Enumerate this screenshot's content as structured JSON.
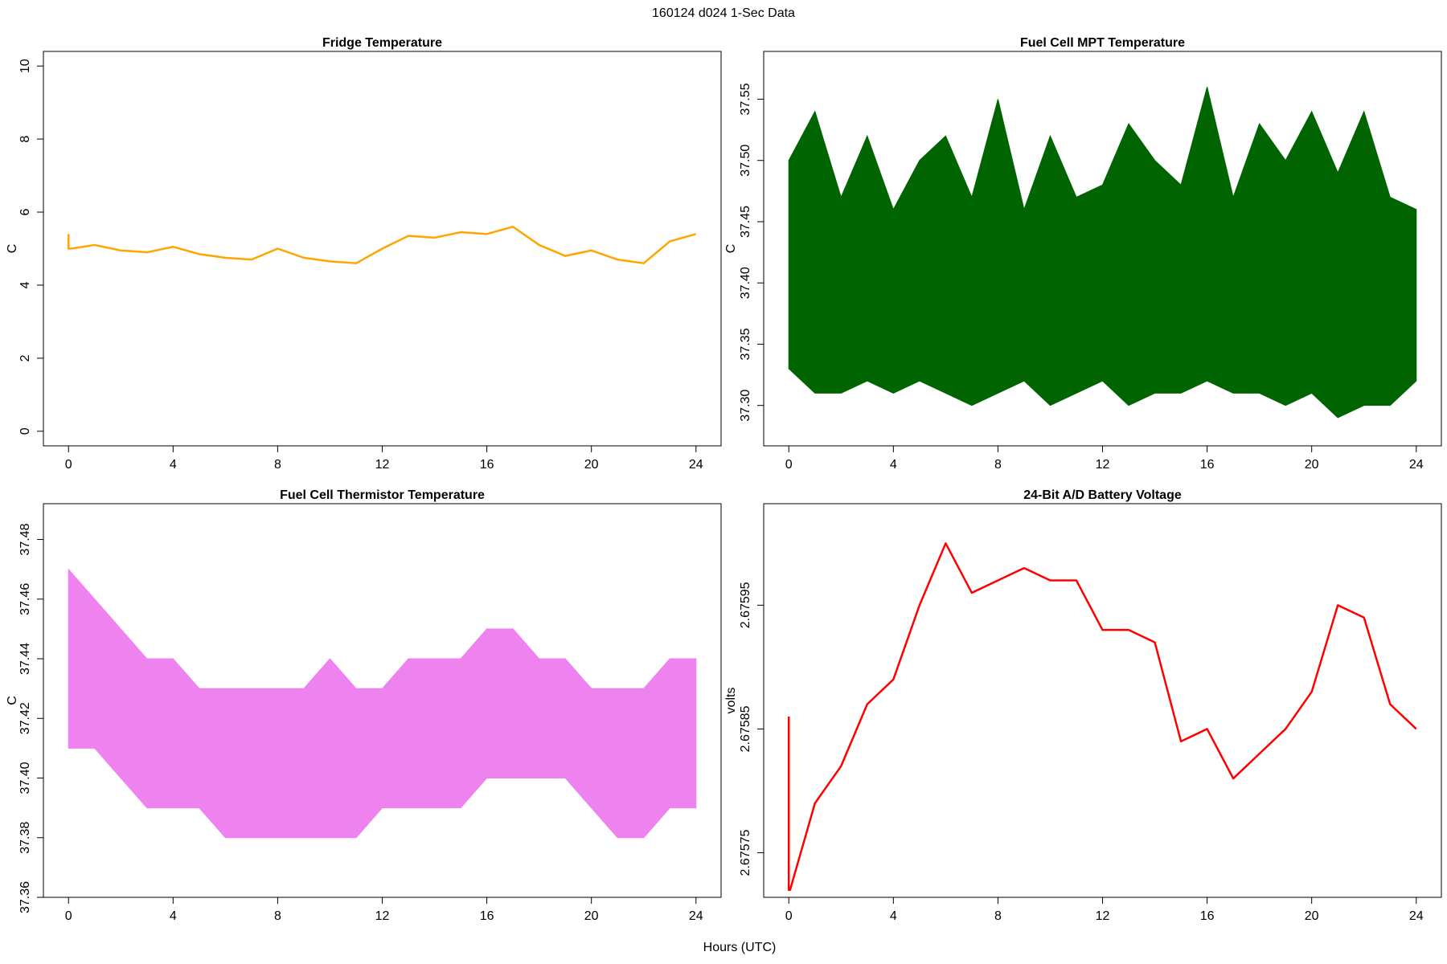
{
  "title": "160124   d024   1-Sec Data",
  "xlabel": "Hours (UTC)",
  "chart_data": [
    {
      "type": "line",
      "title": "Fridge Temperature",
      "ylabel": "C",
      "color": "#ffa500",
      "x": [
        0,
        0,
        0.1,
        1,
        2,
        3,
        4,
        5,
        6,
        7,
        8,
        9,
        10,
        11,
        12,
        13,
        14,
        15,
        16,
        17,
        18,
        19,
        20,
        21,
        22,
        23,
        24
      ],
      "values": [
        5.4,
        5.0,
        5.0,
        5.1,
        4.95,
        4.9,
        5.05,
        4.85,
        4.75,
        4.7,
        5.0,
        4.75,
        4.65,
        4.6,
        5.0,
        5.35,
        5.3,
        5.45,
        5.4,
        5.6,
        5.1,
        4.8,
        4.95,
        4.7,
        4.6,
        5.2,
        5.4
      ],
      "xlim": [
        -0.96,
        24.96
      ],
      "xticks": [
        0,
        4,
        8,
        12,
        16,
        20,
        24
      ],
      "ylim": [
        -0.4,
        10.4
      ],
      "yticks": [
        0,
        2,
        4,
        6,
        8,
        10
      ]
    },
    {
      "type": "band",
      "title": "Fuel Cell MPT Temperature",
      "ylabel": "C",
      "color": "#006400",
      "x": [
        0,
        1,
        2,
        3,
        4,
        5,
        6,
        7,
        8,
        9,
        10,
        11,
        12,
        13,
        14,
        15,
        16,
        17,
        18,
        19,
        20,
        21,
        22,
        23,
        24
      ],
      "upper": [
        37.5,
        37.54,
        37.47,
        37.52,
        37.46,
        37.5,
        37.52,
        37.47,
        37.55,
        37.46,
        37.52,
        37.47,
        37.48,
        37.53,
        37.5,
        37.48,
        37.56,
        37.47,
        37.53,
        37.5,
        37.54,
        37.49,
        37.54,
        37.47,
        37.46
      ],
      "lower": [
        37.33,
        37.31,
        37.31,
        37.32,
        37.31,
        37.32,
        37.31,
        37.3,
        37.31,
        37.32,
        37.3,
        37.31,
        37.32,
        37.3,
        37.31,
        37.31,
        37.32,
        37.31,
        37.31,
        37.3,
        37.31,
        37.29,
        37.3,
        37.3,
        37.32
      ],
      "xlim": [
        -0.96,
        24.96
      ],
      "xticks": [
        0,
        4,
        8,
        12,
        16,
        20,
        24
      ],
      "ylim": [
        37.267,
        37.589
      ],
      "yticks": [
        {
          "value": 37.3,
          "label": "37.30"
        },
        37.35,
        {
          "value": 37.4,
          "label": "37.40"
        },
        37.45,
        {
          "value": 37.5,
          "label": "37.50"
        },
        37.55
      ]
    },
    {
      "type": "band",
      "title": "Fuel Cell Thermistor Temperature",
      "ylabel": "C",
      "color": "#ee82ee",
      "x": [
        0,
        1,
        2,
        3,
        4,
        5,
        6,
        7,
        8,
        9,
        10,
        11,
        12,
        13,
        14,
        15,
        16,
        17,
        18,
        19,
        20,
        21,
        22,
        23,
        24
      ],
      "upper": [
        37.47,
        37.46,
        37.45,
        37.44,
        37.44,
        37.43,
        37.43,
        37.43,
        37.43,
        37.43,
        37.44,
        37.43,
        37.43,
        37.44,
        37.44,
        37.44,
        37.45,
        37.45,
        37.44,
        37.44,
        37.43,
        37.43,
        37.43,
        37.44,
        37.44
      ],
      "lower": [
        37.41,
        37.41,
        37.4,
        37.39,
        37.39,
        37.39,
        37.38,
        37.38,
        37.38,
        37.38,
        37.38,
        37.38,
        37.39,
        37.39,
        37.39,
        37.39,
        37.4,
        37.4,
        37.4,
        37.4,
        37.39,
        37.38,
        37.38,
        37.39,
        37.39
      ],
      "xlim": [
        -0.96,
        24.96
      ],
      "xticks": [
        0,
        4,
        8,
        12,
        16,
        20,
        24
      ],
      "ylim": [
        37.36,
        37.492
      ],
      "yticks": [
        37.36,
        37.38,
        {
          "value": 37.4,
          "label": "37.40"
        },
        37.42,
        37.44,
        37.46,
        37.48
      ]
    },
    {
      "type": "line",
      "title": "24-Bit A/D Battery Voltage",
      "ylabel": "volts",
      "color": "#ff0000",
      "x": [
        0,
        0,
        0.05,
        1,
        2,
        3,
        4,
        5,
        6,
        7,
        8,
        9,
        10,
        11,
        12,
        13,
        14,
        15,
        16,
        17,
        18,
        19,
        20,
        21,
        22,
        23,
        24
      ],
      "values": [
        2.67586,
        2.67572,
        2.67572,
        2.67579,
        2.67582,
        2.67587,
        2.67589,
        2.67595,
        2.676,
        2.67596,
        2.67597,
        2.67598,
        2.67597,
        2.67597,
        2.67593,
        2.67593,
        2.67592,
        2.67584,
        2.67585,
        2.67581,
        2.67583,
        2.67585,
        2.67588,
        2.67595,
        2.67594,
        2.67587,
        2.67585
      ],
      "xlim": [
        -0.96,
        24.96
      ],
      "xticks": [
        0,
        4,
        8,
        12,
        16,
        20,
        24
      ],
      "ylim": [
        2.675714,
        2.676032
      ],
      "yticks": [
        2.67575,
        2.67585,
        2.67595
      ]
    }
  ]
}
